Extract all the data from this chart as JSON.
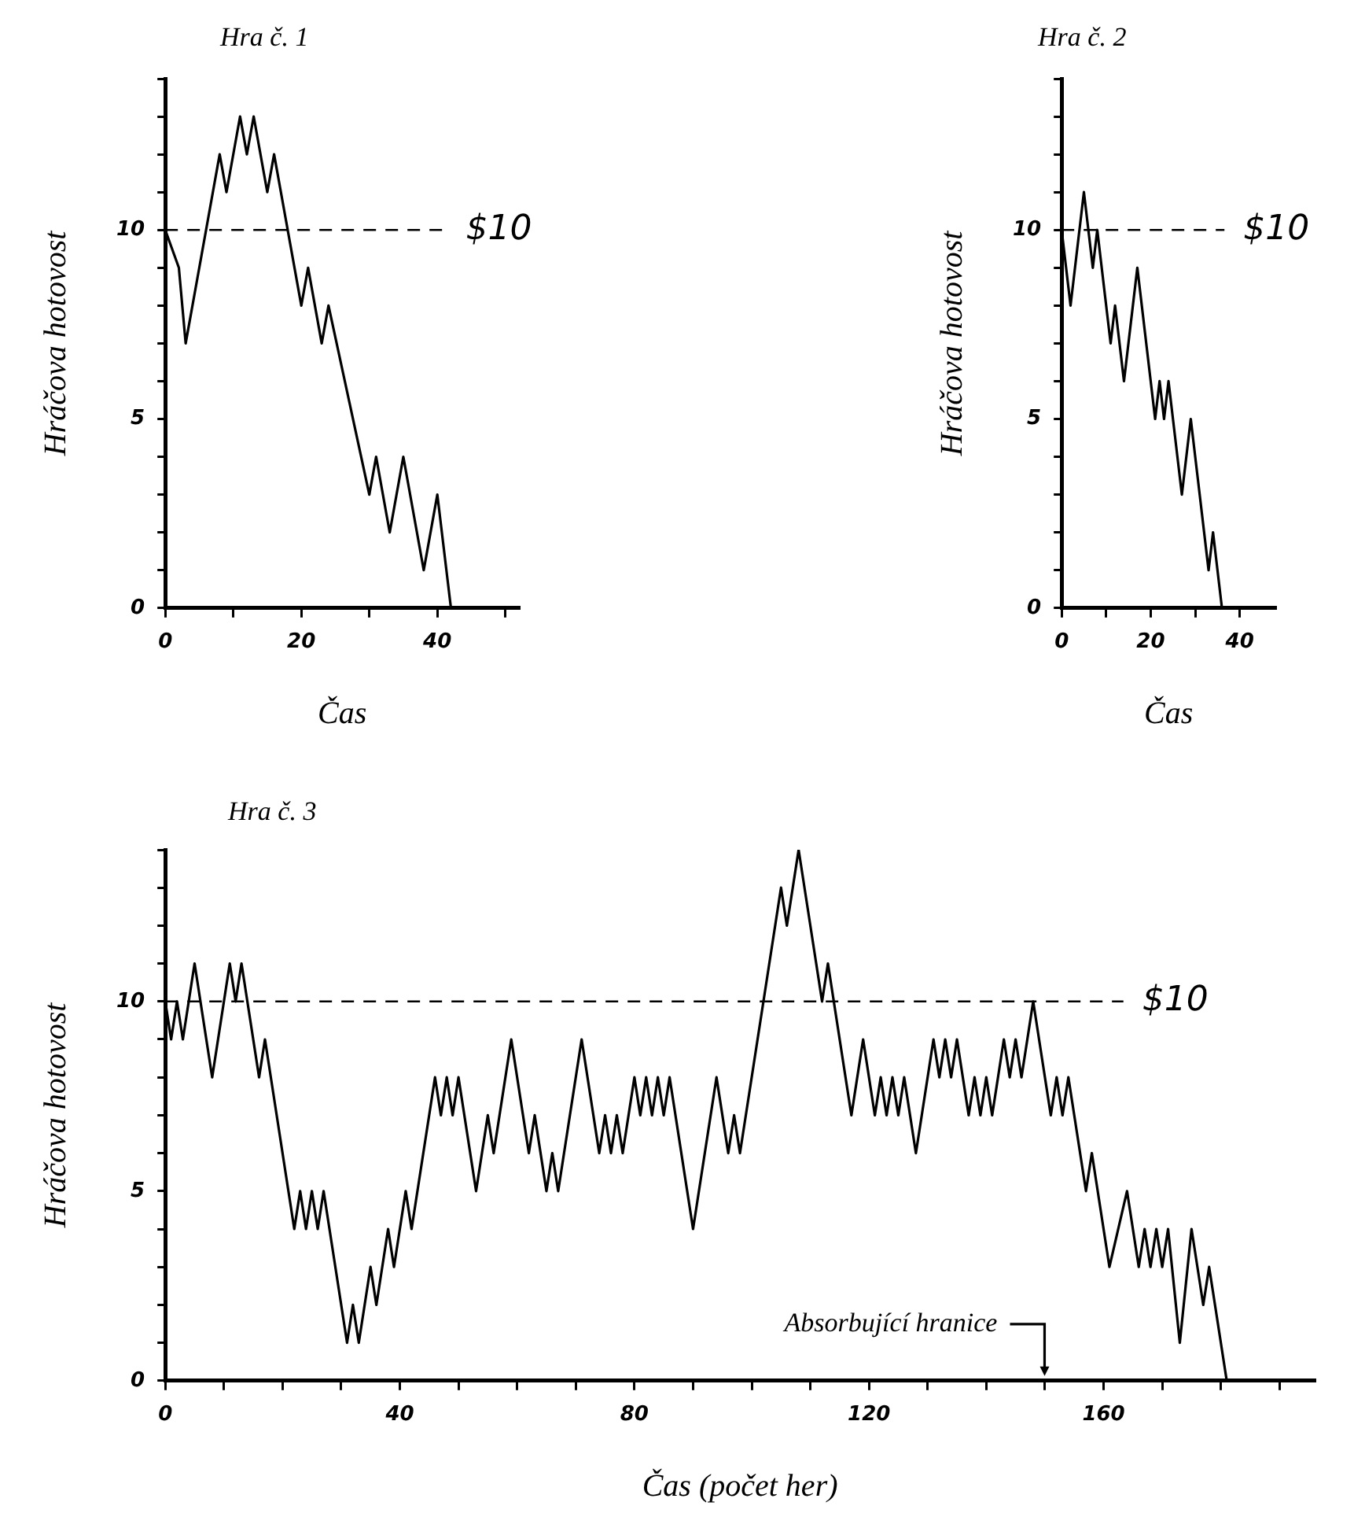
{
  "chart_data": [
    {
      "type": "line",
      "title": "Hra č. 1",
      "xlabel": "Čas",
      "ylabel": "Hráčova hotovost",
      "color": "#000000",
      "line_style": "solid",
      "x": [
        0,
        2,
        3,
        6,
        8,
        9,
        11,
        12,
        13,
        15,
        16,
        20,
        21,
        23,
        24,
        30,
        31,
        33,
        35,
        38,
        40,
        42
      ],
      "values": [
        10,
        9,
        7,
        10,
        12,
        11,
        13,
        12,
        13,
        11,
        12,
        8,
        9,
        7,
        8,
        3,
        4,
        2,
        4,
        1,
        3,
        0
      ],
      "xlim": [
        0,
        52
      ],
      "ylim": [
        0,
        14
      ],
      "xticks": [
        0,
        {
          "value": 10,
          "label": null
        },
        20,
        {
          "value": 30,
          "label": null
        },
        40,
        {
          "value": 50,
          "label": null
        }
      ],
      "yticks": [
        0,
        {
          "value": 1,
          "label": null
        },
        {
          "value": 2,
          "label": null
        },
        {
          "value": 3,
          "label": null
        },
        {
          "value": 4,
          "label": null
        },
        5,
        {
          "value": 6,
          "label": null
        },
        {
          "value": 7,
          "label": null
        },
        {
          "value": 8,
          "label": null
        },
        {
          "value": 9,
          "label": null
        },
        10,
        {
          "value": 11,
          "label": null
        },
        {
          "value": 12,
          "label": null
        },
        {
          "value": 13,
          "label": null
        },
        {
          "value": 14,
          "label": null
        }
      ],
      "ref_lines": [
        {
          "axis": "y",
          "value": 10,
          "label": "$10",
          "line_style": "dashed"
        }
      ]
    },
    {
      "type": "line",
      "title": "Hra č. 2",
      "xlabel": "Čas",
      "ylabel": "Hráčova hotovost",
      "color": "#000000",
      "line_style": "solid",
      "x": [
        0,
        2,
        5,
        7,
        8,
        11,
        12,
        14,
        17,
        21,
        22,
        23,
        24,
        27,
        29,
        33,
        34,
        36
      ],
      "values": [
        10,
        8,
        11,
        9,
        10,
        7,
        8,
        6,
        9,
        5,
        6,
        5,
        6,
        3,
        5,
        1,
        2,
        0
      ],
      "xlim": [
        0,
        48
      ],
      "ylim": [
        0,
        14
      ],
      "xticks": [
        0,
        {
          "value": 10,
          "label": null
        },
        20,
        {
          "value": 30,
          "label": null
        },
        40
      ],
      "yticks": [
        0,
        {
          "value": 1,
          "label": null
        },
        {
          "value": 2,
          "label": null
        },
        {
          "value": 3,
          "label": null
        },
        {
          "value": 4,
          "label": null
        },
        5,
        {
          "value": 6,
          "label": null
        },
        {
          "value": 7,
          "label": null
        },
        {
          "value": 8,
          "label": null
        },
        {
          "value": 9,
          "label": null
        },
        10,
        {
          "value": 11,
          "label": null
        },
        {
          "value": 12,
          "label": null
        },
        {
          "value": 13,
          "label": null
        },
        {
          "value": 14,
          "label": null
        }
      ],
      "ref_lines": [
        {
          "axis": "y",
          "value": 10,
          "label": "$10",
          "line_style": "dashed"
        }
      ]
    },
    {
      "type": "line",
      "title": "Hra č. 3",
      "xlabel": "Čas (počet her)",
      "ylabel": "Hráčova hotovost",
      "color": "#000000",
      "line_style": "solid",
      "x": [
        0,
        1,
        2,
        3,
        5,
        8,
        11,
        12,
        13,
        16,
        17,
        22,
        23,
        24,
        25,
        26,
        27,
        31,
        32,
        33,
        35,
        36,
        38,
        39,
        41,
        42,
        46,
        47,
        48,
        49,
        50,
        53,
        55,
        56,
        59,
        62,
        63,
        65,
        66,
        67,
        71,
        74,
        75,
        76,
        77,
        78,
        80,
        81,
        82,
        83,
        84,
        85,
        86,
        90,
        94,
        96,
        97,
        98,
        105,
        106,
        108,
        112,
        113,
        117,
        119,
        121,
        122,
        123,
        124,
        125,
        126,
        128,
        131,
        132,
        133,
        134,
        135,
        137,
        138,
        139,
        140,
        141,
        143,
        144,
        145,
        146,
        148,
        151,
        152,
        153,
        154,
        157,
        158,
        159,
        161,
        164,
        166,
        167,
        168,
        169,
        170,
        171,
        173,
        175,
        177,
        178,
        181
      ],
      "values": [
        10,
        9,
        10,
        9,
        11,
        8,
        11,
        10,
        11,
        8,
        9,
        4,
        5,
        4,
        5,
        4,
        5,
        1,
        2,
        1,
        3,
        2,
        4,
        3,
        5,
        4,
        8,
        7,
        8,
        7,
        8,
        5,
        7,
        6,
        9,
        6,
        7,
        5,
        6,
        5,
        9,
        6,
        7,
        6,
        7,
        6,
        8,
        7,
        8,
        7,
        8,
        7,
        8,
        4,
        8,
        6,
        7,
        6,
        13,
        12,
        14,
        10,
        11,
        7,
        9,
        7,
        8,
        7,
        8,
        7,
        8,
        6,
        9,
        8,
        9,
        8,
        9,
        7,
        8,
        7,
        8,
        7,
        9,
        8,
        9,
        8,
        10,
        7,
        8,
        7,
        8,
        5,
        6,
        5,
        3,
        5,
        3,
        4,
        3,
        4,
        3,
        4,
        1,
        4,
        2,
        3,
        0
      ],
      "xlim": [
        0,
        196
      ],
      "ylim": [
        0,
        14
      ],
      "xticks": [
        0,
        {
          "value": 10,
          "label": null
        },
        {
          "value": 20,
          "label": null
        },
        {
          "value": 30,
          "label": null
        },
        40,
        {
          "value": 50,
          "label": null
        },
        {
          "value": 60,
          "label": null
        },
        {
          "value": 70,
          "label": null
        },
        80,
        {
          "value": 90,
          "label": null
        },
        {
          "value": 100,
          "label": null
        },
        {
          "value": 110,
          "label": null
        },
        120,
        {
          "value": 130,
          "label": null
        },
        {
          "value": 140,
          "label": null
        },
        {
          "value": 150,
          "label": null
        },
        160,
        {
          "value": 170,
          "label": null
        },
        {
          "value": 180,
          "label": null
        },
        {
          "value": 190,
          "label": null
        }
      ],
      "yticks": [
        0,
        {
          "value": 1,
          "label": null
        },
        {
          "value": 2,
          "label": null
        },
        {
          "value": 3,
          "label": null
        },
        {
          "value": 4,
          "label": null
        },
        5,
        {
          "value": 6,
          "label": null
        },
        {
          "value": 7,
          "label": null
        },
        {
          "value": 8,
          "label": null
        },
        {
          "value": 9,
          "label": null
        },
        10,
        {
          "value": 11,
          "label": null
        },
        {
          "value": 12,
          "label": null
        },
        {
          "value": 13,
          "label": null
        },
        {
          "value": 14,
          "label": null
        }
      ],
      "ref_lines": [
        {
          "axis": "y",
          "value": 10,
          "label": "$10",
          "line_style": "dashed"
        }
      ],
      "annotations": [
        "Absorbující hranice"
      ]
    }
  ]
}
